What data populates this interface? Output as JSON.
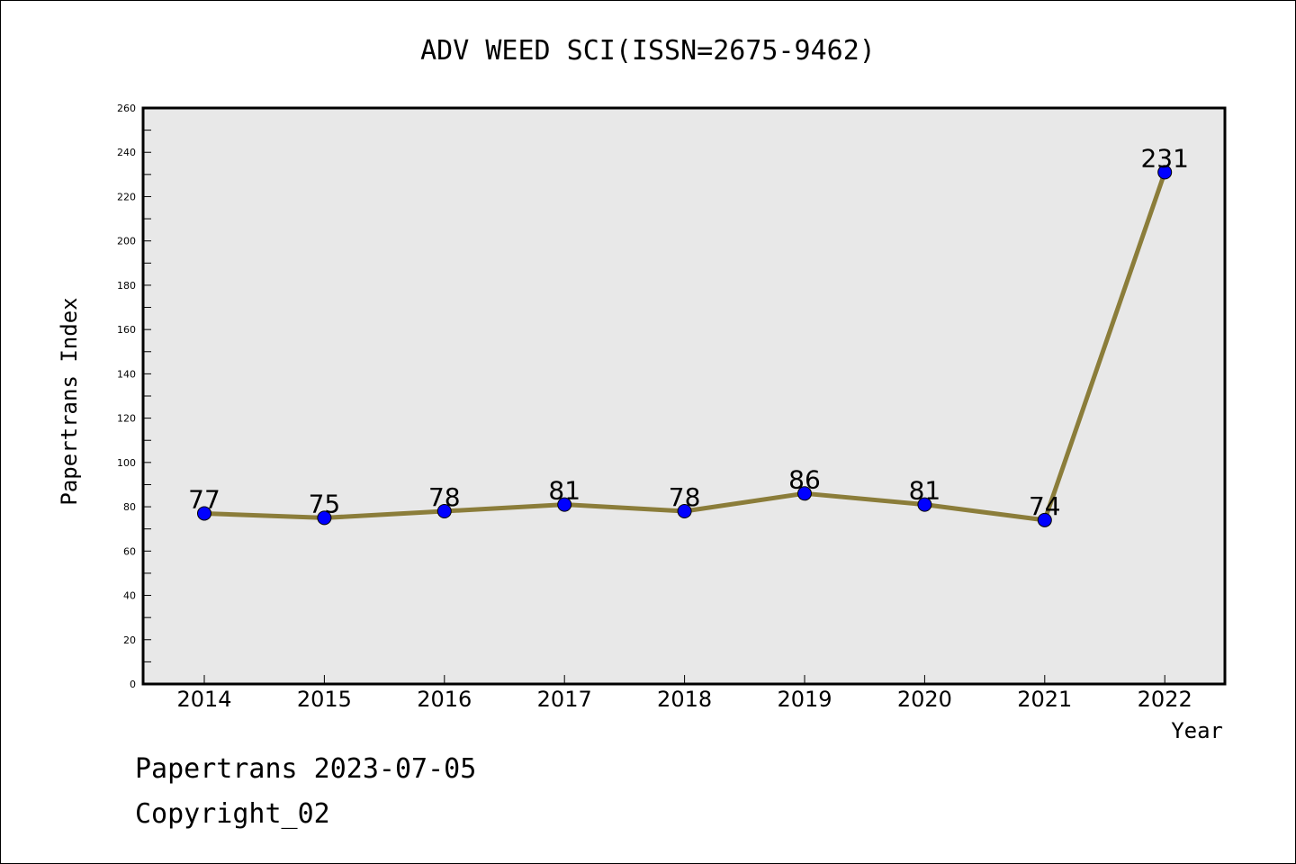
{
  "chart_data": {
    "type": "line",
    "title": "ADV WEED SCI(ISSN=2675-9462)",
    "xlabel": "Year",
    "ylabel": "Papertrans Index",
    "categories": [
      "2014",
      "2015",
      "2016",
      "2017",
      "2018",
      "2019",
      "2020",
      "2021",
      "2022"
    ],
    "series": [
      {
        "values": [
          77,
          75,
          78,
          81,
          78,
          86,
          81,
          74,
          231
        ]
      }
    ],
    "data_labels": [
      "77",
      "75",
      "78",
      "81",
      "78",
      "86",
      "81",
      "74",
      "231"
    ],
    "ylim": [
      0,
      260
    ],
    "yticks": [
      "0",
      "20",
      "40",
      "60",
      "80",
      "100",
      "120",
      "140",
      "160",
      "180",
      "200",
      "220",
      "240",
      "260"
    ],
    "yticks_values": [
      0,
      20,
      40,
      60,
      80,
      100,
      120,
      140,
      160,
      180,
      200,
      220,
      240,
      260
    ],
    "grid": false,
    "colors": {
      "plot_background": "#e8e8e8",
      "line": "#8b7d3a",
      "marker": "#0000ff"
    }
  },
  "footer": {
    "line1": "Papertrans 2023-07-05",
    "line2": "Copyright_02"
  }
}
